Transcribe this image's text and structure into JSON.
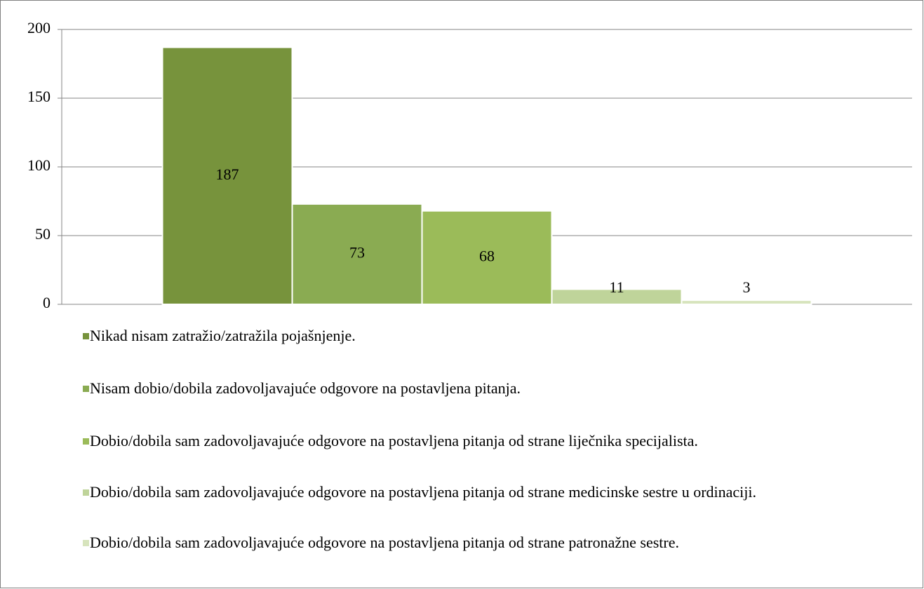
{
  "chart_data": {
    "type": "bar",
    "series": [
      {
        "name": "Nikad nisam zatražio/zatražila pojašnjenje.",
        "color": "#77933c",
        "values": [
          187
        ]
      },
      {
        "name": "Nisam dobio/dobila zadovoljavajuće odgovore na postavljena pitanja.",
        "color": "#8aab52",
        "values": [
          73
        ]
      },
      {
        "name": "Dobio/dobila sam zadovoljavajuće odgovore na postavljena pitanja od strane liječnika specijalista.",
        "color": "#9bbb59",
        "values": [
          68
        ]
      },
      {
        "name": "Dobio/dobila sam zadovoljavajuće odgovore na postavljena pitanja od strane medicinske sestre u ordinaciji.",
        "color": "#bfd49a",
        "values": [
          11
        ]
      },
      {
        "name": "Dobio/dobila sam zadovoljavajuće odgovore na postavljena pitanja od strane patronažne sestre.",
        "color": "#d7e4bd",
        "values": [
          3
        ]
      }
    ],
    "ylim": [
      0,
      200
    ],
    "yticks": [
      0,
      50,
      100,
      150,
      200
    ],
    "grid": true,
    "legend": "bottom"
  }
}
